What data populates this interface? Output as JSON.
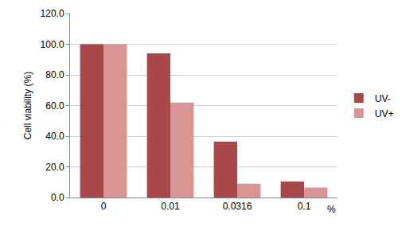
{
  "chart_data": {
    "type": "bar",
    "categories": [
      "0",
      "0.01",
      "0.0316",
      "0.1"
    ],
    "x_label": "%",
    "y_label": "Cell viability (%)",
    "series": [
      {
        "name": "UV-",
        "color": "#a9484a",
        "values": [
          100,
          94,
          36.5,
          10.5
        ]
      },
      {
        "name": "UV+",
        "color": "#d99594",
        "values": [
          100,
          62,
          9,
          6.5
        ]
      }
    ],
    "ylim": [
      0,
      120
    ],
    "yticks": [
      {
        "value": 0,
        "label": "0.0"
      },
      {
        "value": 20,
        "label": "20.0"
      },
      {
        "value": 40,
        "label": "40.0"
      },
      {
        "value": 60,
        "label": "60.0"
      },
      {
        "value": 80,
        "label": "80.0"
      },
      {
        "value": 100,
        "label": "100.0"
      },
      {
        "value": 120,
        "label": "120.0"
      }
    ],
    "grid": true,
    "legend": "right"
  }
}
